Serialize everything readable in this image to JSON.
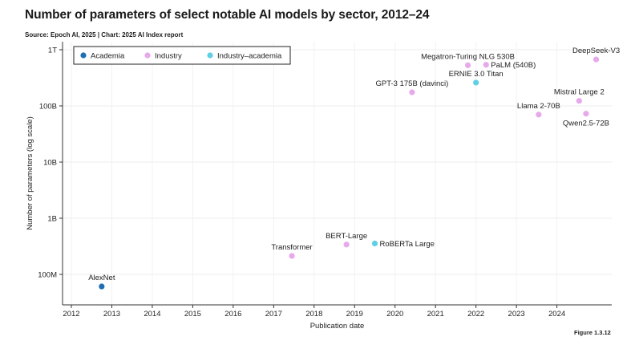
{
  "header": {
    "title": "Number of parameters of select notable AI models by sector, 2012–24",
    "source": "Source: Epoch AI, 2025 | Chart: 2025 AI Index report",
    "figure": "Figure 1.3.12"
  },
  "chart_data": {
    "type": "scatter",
    "title": "Number of parameters of select notable AI models by sector, 2012–24",
    "xlabel": "Publication date",
    "ylabel": "Number of parameters (log scale)",
    "y_scale": "log",
    "xlim": [
      2012,
      2025.7
    ],
    "ylim": [
      35000000,
      1000000000000
    ],
    "x_ticks": [
      {
        "value": 2012,
        "label": "2012"
      },
      {
        "value": 2013,
        "label": "2013"
      },
      {
        "value": 2014,
        "label": "2014"
      },
      {
        "value": 2015,
        "label": "2015"
      },
      {
        "value": 2016,
        "label": "2016"
      },
      {
        "value": 2017,
        "label": "2017"
      },
      {
        "value": 2018,
        "label": "2018"
      },
      {
        "value": 2019,
        "label": "2019"
      },
      {
        "value": 2020,
        "label": "2020"
      },
      {
        "value": 2021,
        "label": "2021"
      },
      {
        "value": 2022,
        "label": "2022"
      },
      {
        "value": 2023,
        "label": "2023"
      },
      {
        "value": 2024,
        "label": "2024"
      }
    ],
    "y_ticks": [
      {
        "value": 100000000,
        "label": "100M"
      },
      {
        "value": 1000000000,
        "label": "1B"
      },
      {
        "value": 10000000000,
        "label": "10B"
      },
      {
        "value": 100000000000,
        "label": "100B"
      },
      {
        "value": 1000000000000,
        "label": "1T"
      }
    ],
    "grid": true,
    "legend_position": "top-left",
    "series": [
      {
        "name": "Academia",
        "color": "#1f6fb2",
        "points": [
          {
            "x": 2012.75,
            "y": 61000000,
            "label": "AlexNet",
            "label_pos": "above"
          }
        ]
      },
      {
        "name": "Industry",
        "color": "#e6a9ec",
        "points": [
          {
            "x": 2017.45,
            "y": 213000000,
            "label": "Transformer",
            "label_pos": "above"
          },
          {
            "x": 2018.8,
            "y": 340000000,
            "label": "BERT-Large",
            "label_pos": "above"
          },
          {
            "x": 2020.42,
            "y": 175000000000,
            "label": "GPT-3 175B (davinci)",
            "label_pos": "above"
          },
          {
            "x": 2021.8,
            "y": 530000000000,
            "label": "Megatron-Turing NLG 530B",
            "label_pos": "above"
          },
          {
            "x": 2022.25,
            "y": 540000000000,
            "label": "PaLM (540B)",
            "label_pos": "right"
          },
          {
            "x": 2023.55,
            "y": 70000000000,
            "label": "Llama 2-70B",
            "label_pos": "above"
          },
          {
            "x": 2024.55,
            "y": 123000000000,
            "label": "Mistral Large 2",
            "label_pos": "above"
          },
          {
            "x": 2024.72,
            "y": 72700000000,
            "label": "Qwen2.5-72B",
            "label_pos": "below"
          },
          {
            "x": 2024.97,
            "y": 671000000000,
            "label": "DeepSeek-V3",
            "label_pos": "above"
          }
        ]
      },
      {
        "name": "Industry–academia",
        "color": "#5fd0e4",
        "points": [
          {
            "x": 2019.5,
            "y": 355000000,
            "label": "RoBERTa Large",
            "label_pos": "right"
          },
          {
            "x": 2022.0,
            "y": 260000000000,
            "label": "ERNIE 3.0 Titan",
            "label_pos": "above"
          }
        ]
      }
    ]
  }
}
